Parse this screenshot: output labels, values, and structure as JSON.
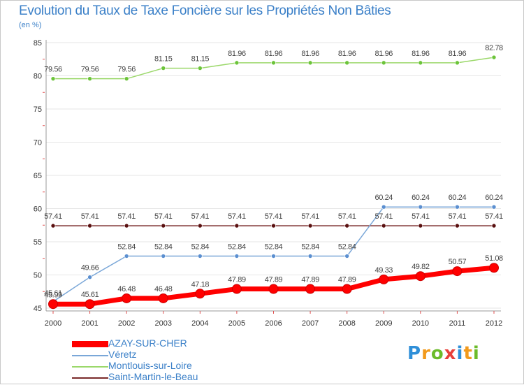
{
  "chart_data": {
    "type": "line",
    "title": "Evolution du Taux de Taxe Foncière sur les Propriétés Non Bâties",
    "subtitle": "(en %)",
    "categories": [
      "2000",
      "2001",
      "2002",
      "2003",
      "2004",
      "2005",
      "2006",
      "2007",
      "2008",
      "2009",
      "2010",
      "2011",
      "2012"
    ],
    "ylim": [
      45,
      85
    ],
    "yticks": [
      "45",
      "50",
      "55",
      "60",
      "65",
      "70",
      "75",
      "80",
      "85"
    ],
    "series": [
      {
        "name": "AZAY-SUR-CHER",
        "color": "#ff0000",
        "marker_color": "#ff0000",
        "values": [
          45.61,
          45.61,
          46.48,
          46.48,
          47.18,
          47.89,
          47.89,
          47.89,
          47.89,
          49.33,
          49.82,
          50.57,
          51.08
        ],
        "labels": [
          "45.61",
          "45.61",
          "46.48",
          "46.48",
          "47.18",
          "47.89",
          "47.89",
          "47.89",
          "47.89",
          "49.33",
          "49.82",
          "50.57",
          "51.08"
        ]
      },
      {
        "name": "Véretz",
        "color": "#7aa7d8",
        "marker_color": "#5b8fd0",
        "values": [
          45.99,
          49.66,
          52.84,
          52.84,
          52.84,
          52.84,
          52.84,
          52.84,
          52.84,
          60.24,
          60.24,
          60.24,
          60.24
        ],
        "labels": [
          "45.99",
          "49.66",
          "52.84",
          "52.84",
          "52.84",
          "52.84",
          "52.84",
          "52.84",
          "52.84",
          "60.24",
          "60.24",
          "60.24",
          "60.24"
        ]
      },
      {
        "name": "Montlouis-sur-Loire",
        "color": "#9bd86a",
        "marker_color": "#6cc43a",
        "values": [
          79.56,
          79.56,
          79.56,
          81.15,
          81.15,
          81.96,
          81.96,
          81.96,
          81.96,
          81.96,
          81.96,
          81.96,
          82.78
        ],
        "labels": [
          "79.56",
          "79.56",
          "79.56",
          "81.15",
          "81.15",
          "81.96",
          "81.96",
          "81.96",
          "81.96",
          "81.96",
          "81.96",
          "81.96",
          "82.78"
        ]
      },
      {
        "name": "Saint-Martin-le-Beau",
        "color": "#7a2a2a",
        "marker_color": "#5a1010",
        "values": [
          57.41,
          57.41,
          57.41,
          57.41,
          57.41,
          57.41,
          57.41,
          57.41,
          57.41,
          57.41,
          57.41,
          57.41,
          57.41
        ],
        "labels": [
          "57.41",
          "57.41",
          "57.41",
          "57.41",
          "57.41",
          "57.41",
          "57.41",
          "57.41",
          "57.41",
          "57.41",
          "57.41",
          "57.41",
          "57.41"
        ]
      }
    ],
    "legend": [
      "AZAY-SUR-CHER",
      "Véretz",
      "Montlouis-sur-Loire",
      "Saint-Martin-le-Beau"
    ]
  },
  "logo": {
    "letters": [
      "P",
      "r",
      "o",
      "x",
      "i",
      "t",
      "i"
    ],
    "colors": [
      "#2f8fd8",
      "#f29a1c",
      "#6cbb2a",
      "#e8403a",
      "#2f8fd8",
      "#f29a1c",
      "#6cbb2a"
    ]
  }
}
